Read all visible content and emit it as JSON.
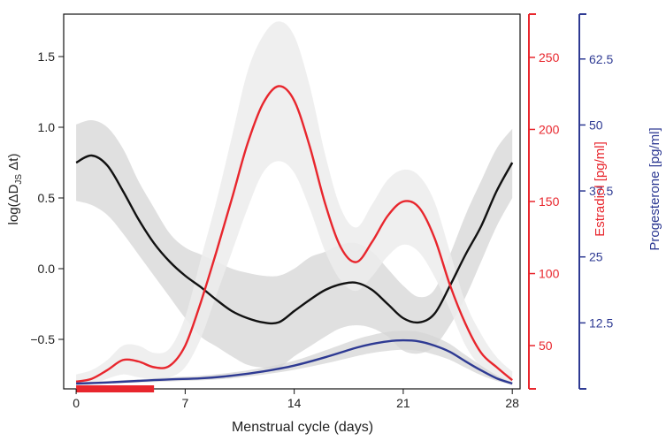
{
  "chart_data": {
    "type": "line",
    "xlabel": "Menstrual cycle (days)",
    "ylabel_left": {
      "prefix": "log(ΔD",
      "sub": "JS",
      "suffix": " Δt)"
    },
    "ylabel_right1": "Estradiol [pg/ml]",
    "ylabel_right2": "Progesterone [pg/ml]",
    "xlim": [
      -0.8,
      28.5
    ],
    "ylim_left": [
      -0.85,
      1.8
    ],
    "ylim_right1": [
      20,
      280
    ],
    "ylim_right2": [
      0,
      71
    ],
    "x_ticks": [
      0,
      7,
      14,
      21,
      28
    ],
    "x_tick_labels": [
      "0",
      "7",
      "14",
      "21",
      "28"
    ],
    "y_ticks_left": [
      -0.5,
      0.0,
      0.5,
      1.0,
      1.5
    ],
    "y_tick_labels_left": [
      "−0.5",
      "0.0",
      "0.5",
      "1.0",
      "1.5"
    ],
    "y_ticks_right1": [
      50,
      100,
      150,
      200,
      250
    ],
    "y_tick_labels_right1": [
      "50",
      "100",
      "150",
      "200",
      "250"
    ],
    "y_ticks_right2": [
      12.5,
      25,
      37.5,
      50,
      62.5
    ],
    "y_tick_labels_right2": [
      "12.5",
      "25",
      "37.5",
      "50",
      "62.5"
    ],
    "colors": {
      "divergence": "#111111",
      "estradiol": "#e8262d",
      "progesterone": "#2e3a93",
      "band": "#d6d6d6",
      "band_light": "#ececec",
      "menses": "#e8262d"
    },
    "menses_bar": {
      "x_start": 0,
      "x_end": 5
    },
    "series": [
      {
        "axis": "left",
        "color": "#111111",
        "x": [
          0,
          1,
          2,
          3,
          4,
          5,
          6,
          7,
          8,
          9,
          10,
          11,
          12,
          13,
          14,
          15,
          16,
          17,
          18,
          19,
          20,
          21,
          22,
          23,
          24,
          25,
          26,
          27,
          28
        ],
        "values": [
          0.75,
          0.8,
          0.73,
          0.55,
          0.35,
          0.18,
          0.05,
          -0.05,
          -0.13,
          -0.22,
          -0.3,
          -0.35,
          -0.38,
          -0.38,
          -0.3,
          -0.22,
          -0.15,
          -0.11,
          -0.1,
          -0.15,
          -0.25,
          -0.35,
          -0.38,
          -0.32,
          -0.12,
          0.1,
          0.3,
          0.55,
          0.75
        ],
        "lower": [
          0.48,
          0.45,
          0.38,
          0.25,
          0.1,
          -0.05,
          -0.2,
          -0.35,
          -0.48,
          -0.55,
          -0.62,
          -0.68,
          -0.7,
          -0.7,
          -0.62,
          -0.55,
          -0.48,
          -0.42,
          -0.4,
          -0.42,
          -0.48,
          -0.58,
          -0.6,
          -0.55,
          -0.4,
          -0.2,
          0.05,
          0.3,
          0.5
        ],
        "upper": [
          1.02,
          1.05,
          1.0,
          0.85,
          0.62,
          0.43,
          0.25,
          0.15,
          0.1,
          0.05,
          0.0,
          -0.03,
          -0.05,
          -0.05,
          0.0,
          0.08,
          0.12,
          0.17,
          0.18,
          0.12,
          0.0,
          -0.12,
          -0.2,
          -0.15,
          0.1,
          0.38,
          0.62,
          0.85,
          0.99
        ]
      },
      {
        "axis": "right1",
        "color": "#e8262d",
        "x": [
          0,
          1,
          2,
          3,
          4,
          5,
          6,
          7,
          8,
          9,
          10,
          11,
          12,
          13,
          14,
          15,
          16,
          17,
          18,
          19,
          20,
          21,
          22,
          23,
          24,
          25,
          26,
          27,
          28
        ],
        "values": [
          25,
          27,
          33,
          40,
          39,
          35,
          36,
          50,
          80,
          115,
          152,
          190,
          218,
          230,
          220,
          188,
          148,
          118,
          108,
          122,
          140,
          150,
          146,
          125,
          92,
          65,
          45,
          35,
          26
        ],
        "lower": [
          22,
          23,
          27,
          30,
          28,
          27,
          28,
          35,
          55,
          85,
          115,
          145,
          170,
          178,
          170,
          145,
          115,
          95,
          88,
          98,
          112,
          120,
          115,
          98,
          75,
          50,
          35,
          27,
          22
        ],
        "upper": [
          30,
          33,
          40,
          50,
          50,
          45,
          48,
          70,
          110,
          150,
          195,
          240,
          265,
          275,
          265,
          230,
          182,
          145,
          132,
          148,
          165,
          172,
          168,
          150,
          115,
          80,
          58,
          42,
          32
        ]
      },
      {
        "axis": "right2",
        "color": "#2e3a93",
        "x": [
          0,
          2,
          4,
          6,
          8,
          10,
          12,
          14,
          16,
          18,
          19,
          20,
          21,
          22,
          23,
          24,
          25,
          26,
          27,
          28
        ],
        "values": [
          1.0,
          1.2,
          1.5,
          1.8,
          2.0,
          2.5,
          3.3,
          4.4,
          6.0,
          7.8,
          8.5,
          9.0,
          9.2,
          9.0,
          8.2,
          7.0,
          5.2,
          3.5,
          2.0,
          1.0
        ],
        "lower": [
          0.8,
          1.0,
          1.2,
          1.4,
          1.6,
          2.0,
          2.7,
          3.6,
          4.8,
          6.2,
          6.8,
          7.2,
          7.4,
          7.2,
          6.5,
          5.5,
          4.0,
          2.6,
          1.5,
          0.8
        ],
        "upper": [
          1.2,
          1.5,
          1.8,
          2.2,
          2.5,
          3.1,
          4.0,
          5.3,
          7.3,
          9.4,
          10.2,
          10.8,
          11.0,
          10.8,
          9.9,
          8.5,
          6.4,
          4.4,
          2.6,
          1.2
        ]
      }
    ]
  }
}
